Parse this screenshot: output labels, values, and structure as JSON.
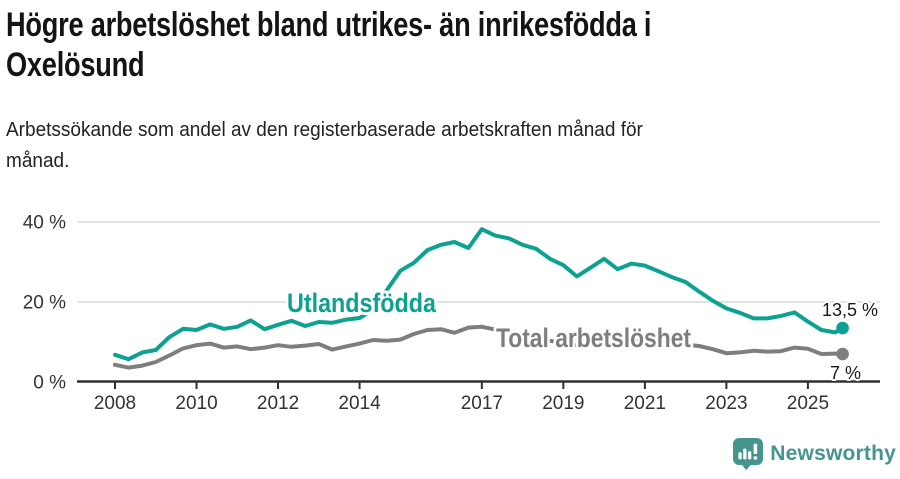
{
  "header": {
    "title_lines": [
      "Högre arbetslöshet bland utrikes- än inrikesfödda i",
      "Oxelösund"
    ],
    "subtitle_lines": [
      "Arbetssökande som andel av den registerbaserade arbetskraften månad för",
      "månad."
    ]
  },
  "footer": {
    "logo_text": "Newsworthy",
    "brand_color": "#45948e"
  },
  "chart_data": {
    "type": "line",
    "title": "Högre arbetslöshet bland utrikes- än inrikesfödda i Oxelösund",
    "subtitle": "Arbetssökande som andel av den registerbaserade arbetskraften månad för månad.",
    "y_unit": "%",
    "ylim": [
      0,
      44
    ],
    "x_range": [
      2008,
      2025.85
    ],
    "grid": "horizontal",
    "legend_position": "inline",
    "yticks": [
      {
        "value": 0,
        "label": "0 %"
      },
      {
        "value": 20,
        "label": "20 %"
      },
      {
        "value": 40,
        "label": "40 %"
      }
    ],
    "xticks": [
      {
        "value": 2008,
        "label": "2008"
      },
      {
        "value": 2010,
        "label": "2010"
      },
      {
        "value": 2012,
        "label": "2012"
      },
      {
        "value": 2014,
        "label": "2014"
      },
      {
        "value": 2017,
        "label": "2017"
      },
      {
        "value": 2019,
        "label": "2019"
      },
      {
        "value": 2021,
        "label": "2021"
      },
      {
        "value": 2023,
        "label": "2023"
      },
      {
        "value": 2025,
        "label": "2025"
      }
    ],
    "x": [
      2008.0,
      2008.33,
      2008.67,
      2009.0,
      2009.33,
      2009.67,
      2010.0,
      2010.33,
      2010.67,
      2011.0,
      2011.33,
      2011.67,
      2012.0,
      2012.33,
      2012.67,
      2013.0,
      2013.33,
      2013.67,
      2014.0,
      2014.33,
      2014.67,
      2015.0,
      2015.33,
      2015.67,
      2016.0,
      2016.33,
      2016.67,
      2017.0,
      2017.33,
      2017.67,
      2018.0,
      2018.33,
      2018.67,
      2019.0,
      2019.33,
      2019.67,
      2020.0,
      2020.33,
      2020.67,
      2021.0,
      2021.33,
      2021.67,
      2022.0,
      2022.33,
      2022.67,
      2023.0,
      2023.33,
      2023.67,
      2024.0,
      2024.33,
      2024.67,
      2025.0,
      2025.33,
      2025.67,
      2025.85
    ],
    "series": [
      {
        "name": "Utlandsfödda",
        "color": "#0da191",
        "end_label": "13,5 %",
        "end_value": 13.5,
        "values": [
          6.8,
          5.7,
          7.4,
          8.0,
          11.2,
          13.3,
          13.0,
          14.4,
          13.3,
          13.8,
          15.4,
          13.2,
          14.3,
          15.3,
          14.0,
          15.0,
          14.8,
          15.6,
          16.0,
          18.0,
          23.0,
          27.8,
          29.8,
          33.0,
          34.3,
          35.0,
          33.5,
          38.2,
          36.6,
          35.9,
          34.3,
          33.3,
          30.8,
          29.2,
          26.4,
          28.6,
          30.8,
          28.2,
          29.6,
          29.1,
          27.7,
          26.2,
          25.0,
          22.6,
          20.3,
          18.4,
          17.3,
          15.9,
          15.9,
          16.5,
          17.4,
          15.1,
          13.0,
          12.4,
          13.5
        ]
      },
      {
        "name": "Total arbetslöshet",
        "color": "#7e7e7e",
        "end_label": "7 %",
        "end_value": 7,
        "values": [
          4.3,
          3.6,
          4.1,
          5.0,
          6.6,
          8.4,
          9.2,
          9.6,
          8.6,
          8.9,
          8.2,
          8.6,
          9.2,
          8.8,
          9.1,
          9.5,
          8.1,
          8.9,
          9.6,
          10.5,
          10.3,
          10.6,
          12.0,
          13.0,
          13.2,
          12.3,
          13.6,
          13.8,
          13.1,
          12.4,
          11.6,
          11.0,
          10.3,
          9.8,
          9.1,
          9.6,
          10.1,
          10.9,
          10.7,
          10.4,
          10.0,
          9.6,
          9.3,
          9.0,
          8.2,
          7.2,
          7.4,
          7.8,
          7.6,
          7.7,
          8.6,
          8.3,
          7.0,
          7.1,
          7.0
        ]
      }
    ]
  }
}
